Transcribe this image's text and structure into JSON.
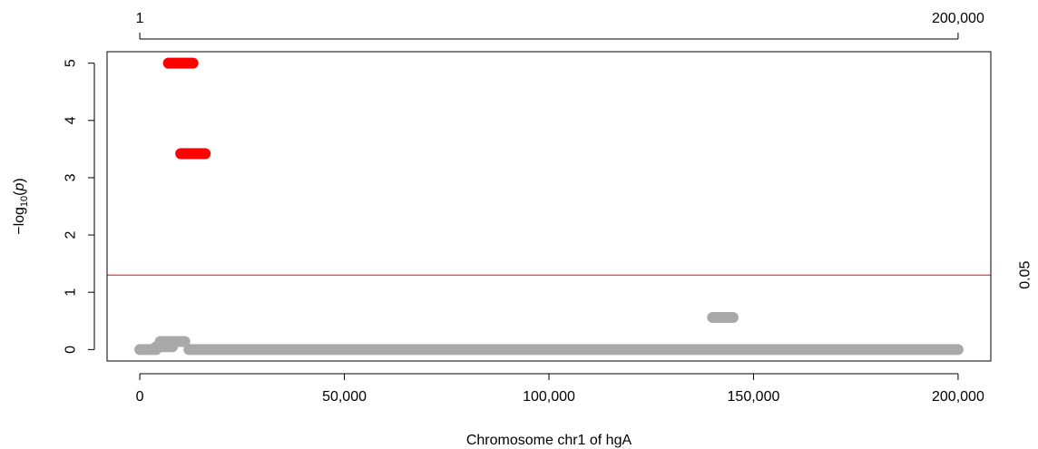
{
  "chart_data": {
    "type": "scatter",
    "xlabel": "Chromosome chr1 of hgA",
    "ylabel": {
      "prefix": "−log",
      "sub": "10",
      "open": "(",
      "var": "p",
      "close": ")"
    },
    "xlim": [
      -8000,
      208000
    ],
    "ylim": [
      -0.2,
      5.2
    ],
    "x_ticks": [
      0,
      50000,
      100000,
      150000,
      200000
    ],
    "x_tick_labels": [
      "0",
      "50,000",
      "100,000",
      "150,000",
      "200,000"
    ],
    "y_ticks": [
      0,
      1,
      2,
      3,
      4,
      5
    ],
    "y_tick_labels": [
      "0",
      "1",
      "2",
      "3",
      "4",
      "5"
    ],
    "top_ticks": [
      1,
      200000
    ],
    "top_tick_labels": [
      "1",
      "200,000"
    ],
    "threshold": {
      "value": 1.301,
      "label": "0.05",
      "color": "#ff0000"
    },
    "colors": {
      "significant": "#ff0000",
      "nonsignificant": "#a9a9a9"
    },
    "segments": [
      {
        "x_start": 0,
        "x_end": 4000,
        "y": 0.0,
        "significant": false
      },
      {
        "x_start": 4000,
        "x_end": 8000,
        "y": 0.05,
        "significant": false
      },
      {
        "x_start": 5000,
        "x_end": 11000,
        "y": 0.14,
        "significant": false
      },
      {
        "x_start": 7000,
        "x_end": 13000,
        "y": 5.0,
        "significant": true
      },
      {
        "x_start": 10000,
        "x_end": 16000,
        "y": 3.42,
        "significant": true
      },
      {
        "x_start": 12000,
        "x_end": 200000,
        "y": 0.0,
        "significant": false
      },
      {
        "x_start": 140000,
        "x_end": 145000,
        "y": 0.56,
        "significant": false
      }
    ]
  }
}
